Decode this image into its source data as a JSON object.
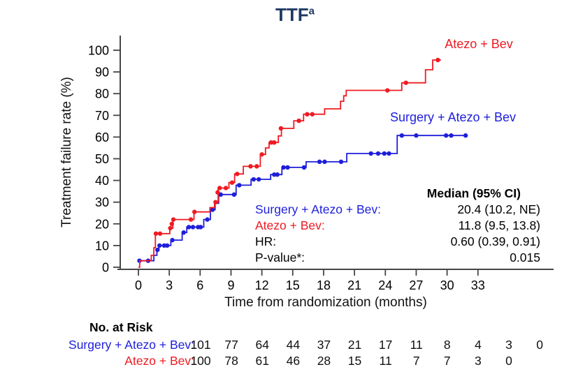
{
  "title": {
    "text": "TTF",
    "superscript": "a"
  },
  "colors": {
    "atezo_bev": "#ee1b22",
    "surgery_atezo_bev": "#1e1edb",
    "title": "#1e3a63",
    "axis": "#464646",
    "text": "#000000"
  },
  "legend": {
    "atezo_bev": "Atezo + Bev",
    "surgery_atezo_bev": "Surgery + Atezo + Bev"
  },
  "chart_data": {
    "type": "line",
    "subtype": "kaplan-meier-step",
    "title": "TTF",
    "xlabel": "Time from randomization (months)",
    "ylabel": "Treatment failure rate (%)",
    "xlim": [
      0,
      36
    ],
    "ylim": [
      0,
      100
    ],
    "xticks": [
      0,
      3,
      6,
      9,
      12,
      15,
      18,
      21,
      24,
      27,
      30,
      33
    ],
    "yticks": [
      0,
      10,
      20,
      30,
      40,
      50,
      60,
      70,
      80,
      90,
      100
    ],
    "grid": false,
    "series": [
      {
        "name": "Surgery + Atezo + Bev",
        "color": "#1e1edb",
        "end": 32.0,
        "steps": [
          [
            0,
            3
          ],
          [
            1.5,
            5.5
          ],
          [
            1.8,
            8
          ],
          [
            2.0,
            10
          ],
          [
            3.15,
            12.5
          ],
          [
            4.25,
            16
          ],
          [
            4.7,
            18.5
          ],
          [
            6.35,
            22
          ],
          [
            7.0,
            26.5
          ],
          [
            7.45,
            29.5
          ],
          [
            7.8,
            33.5
          ],
          [
            9.5,
            37.8
          ],
          [
            10.95,
            40.5
          ],
          [
            12.85,
            42.7
          ],
          [
            13.95,
            46
          ],
          [
            16.3,
            48.6
          ],
          [
            20.25,
            52.4
          ],
          [
            25.15,
            60.7
          ]
        ],
        "censors": [
          [
            0.1,
            3
          ],
          [
            0.95,
            3
          ],
          [
            1.85,
            8
          ],
          [
            2.05,
            10
          ],
          [
            2.5,
            10
          ],
          [
            2.8,
            10
          ],
          [
            3.3,
            12.5
          ],
          [
            4.4,
            16
          ],
          [
            4.9,
            18.5
          ],
          [
            5.3,
            18.5
          ],
          [
            5.8,
            18.5
          ],
          [
            6.05,
            18.5
          ],
          [
            6.7,
            22
          ],
          [
            7.2,
            26.5
          ],
          [
            8.0,
            33.5
          ],
          [
            9.3,
            33.5
          ],
          [
            9.8,
            37.8
          ],
          [
            11.2,
            40.5
          ],
          [
            11.7,
            40.5
          ],
          [
            13.2,
            42.7
          ],
          [
            13.5,
            42.7
          ],
          [
            14.1,
            46
          ],
          [
            14.5,
            46
          ],
          [
            16.1,
            46
          ],
          [
            17.6,
            48.6
          ],
          [
            18.1,
            48.6
          ],
          [
            19.7,
            48.6
          ],
          [
            22.6,
            52.4
          ],
          [
            23.3,
            52.4
          ],
          [
            23.9,
            52.4
          ],
          [
            24.35,
            52.4
          ],
          [
            25.6,
            60.7
          ],
          [
            27.0,
            60.7
          ],
          [
            29.9,
            60.7
          ],
          [
            30.4,
            60.7
          ],
          [
            31.8,
            60.7
          ]
        ]
      },
      {
        "name": "Atezo + Bev",
        "color": "#ee1b22",
        "end": 29.4,
        "steps": [
          [
            0,
            0
          ],
          [
            0.12,
            3
          ],
          [
            1.25,
            5.5
          ],
          [
            1.5,
            9
          ],
          [
            1.65,
            15.5
          ],
          [
            3.05,
            18
          ],
          [
            3.35,
            22
          ],
          [
            5.4,
            25.5
          ],
          [
            6.95,
            27.5
          ],
          [
            7.4,
            30
          ],
          [
            7.75,
            36.5
          ],
          [
            8.8,
            39
          ],
          [
            9.35,
            43
          ],
          [
            10.2,
            46.5
          ],
          [
            11.85,
            52
          ],
          [
            12.35,
            55
          ],
          [
            12.7,
            57.5
          ],
          [
            13.6,
            60.5
          ],
          [
            13.9,
            64
          ],
          [
            15.1,
            67.5
          ],
          [
            16.05,
            70.5
          ],
          [
            18.1,
            73
          ],
          [
            19.65,
            76.5
          ],
          [
            19.95,
            79
          ],
          [
            20.2,
            81.5
          ],
          [
            25.6,
            85
          ],
          [
            27.9,
            91
          ],
          [
            28.6,
            95.5
          ]
        ],
        "censors": [
          [
            1.7,
            15.5
          ],
          [
            2.1,
            15.5
          ],
          [
            3.1,
            18
          ],
          [
            3.25,
            20
          ],
          [
            3.4,
            22
          ],
          [
            5.1,
            22
          ],
          [
            5.45,
            25.5
          ],
          [
            7.5,
            30
          ],
          [
            7.7,
            34.5
          ],
          [
            7.9,
            36.5
          ],
          [
            8.5,
            36.5
          ],
          [
            9.1,
            39
          ],
          [
            9.6,
            43
          ],
          [
            10.9,
            46.5
          ],
          [
            11.5,
            46.5
          ],
          [
            12.0,
            52
          ],
          [
            12.9,
            57.5
          ],
          [
            13.2,
            57.5
          ],
          [
            13.85,
            64
          ],
          [
            15.6,
            67.5
          ],
          [
            16.4,
            70.5
          ],
          [
            16.9,
            70.5
          ],
          [
            24.2,
            81.5
          ],
          [
            26.0,
            85
          ],
          [
            29.1,
            95.5
          ]
        ]
      }
    ]
  },
  "stats": {
    "header": "Median (95% CI)",
    "rows": [
      {
        "label": "Surgery + Atezo + Bev:",
        "value": "20.4 (10.2, NE)",
        "color": "blue"
      },
      {
        "label": "Atezo + Bev:",
        "value": "11.8 (9.5, 13.8)",
        "color": "red"
      },
      {
        "label": "HR:",
        "value": "0.60 (0.39, 0.91)",
        "color": "black"
      },
      {
        "label": "P-value*:",
        "value": "0.015",
        "color": "black"
      }
    ]
  },
  "risk_table": {
    "title": "No. at Risk",
    "rows": [
      {
        "label": "Surgery + Atezo + Bev:",
        "color": "blue",
        "values": [
          "101",
          "77",
          "64",
          "44",
          "37",
          "21",
          "17",
          "11",
          "8",
          "4",
          "3",
          "0"
        ]
      },
      {
        "label": "Atezo + Bev:",
        "color": "red",
        "values": [
          "100",
          "78",
          "61",
          "46",
          "28",
          "15",
          "11",
          "7",
          "7",
          "3",
          "0"
        ]
      }
    ]
  }
}
